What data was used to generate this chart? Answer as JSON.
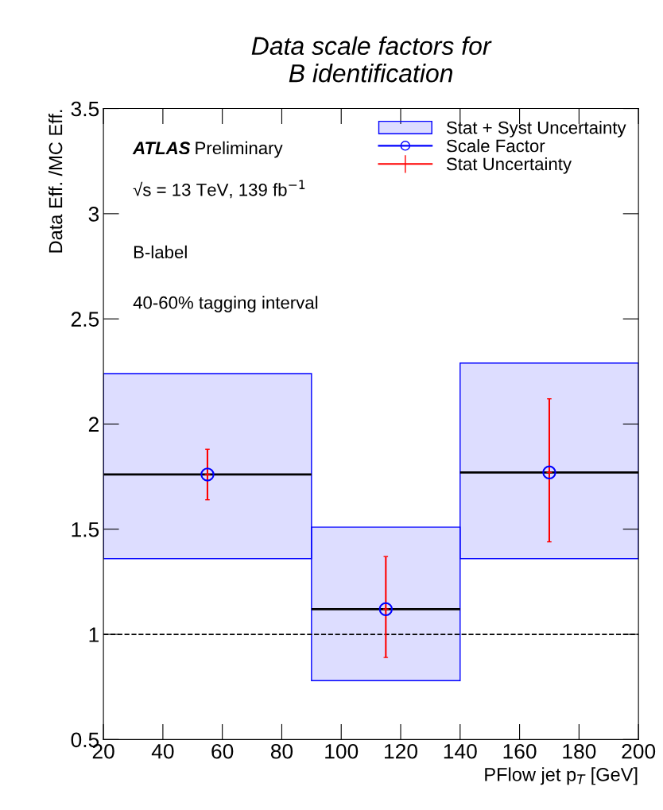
{
  "chart_data": {
    "type": "scatter",
    "title": "Data scale factors for\nB identification",
    "xlabel": "PFlow jet p$_{T}$ [GeV]",
    "ylabel": "Data Eff. /MC Eff.",
    "x": [
      55,
      115,
      170
    ],
    "series": [
      {
        "name": "Stat + Syst Uncertainty",
        "type": "bar",
        "color": "#0000ff",
        "base": [
          1.36,
          0.78,
          1.36
        ],
        "values": [
          0.88,
          0.73,
          0.93
        ]
      },
      {
        "name": "Scale Factor",
        "marker": "circle",
        "color": "#0000ff",
        "values": [
          1.76,
          1.12,
          1.77
        ],
        "xerrors": [
          35,
          25,
          30
        ]
      },
      {
        "name": "Stat Uncertainty",
        "marker": "cross",
        "color": "#ff0000",
        "values": [
          1.76,
          1.12,
          1.77
        ],
        "errors": [
          [
            1.64,
            1.88
          ],
          [
            0.89,
            1.37
          ],
          [
            1.44,
            2.12
          ]
        ]
      }
    ],
    "ref_lines": [
      {
        "axis": "y",
        "value": 1,
        "label": null,
        "color": "#000000",
        "line_style": "dashed"
      }
    ],
    "annotations": [
      "ATLAS",
      "Preliminary",
      "√s = 13 TeV, 139 fb$^{−1}$",
      "B-label",
      "40-60% tagging interval"
    ],
    "xlim": [
      20,
      200
    ],
    "xticks": [
      20,
      40,
      60,
      80,
      100,
      120,
      140,
      160,
      180,
      200
    ],
    "ylim": [
      0.5,
      3.5
    ],
    "yticks": [
      0.5,
      1,
      1.5,
      2,
      2.5,
      3,
      3.5
    ],
    "grid": false,
    "legend": "top right"
  }
}
